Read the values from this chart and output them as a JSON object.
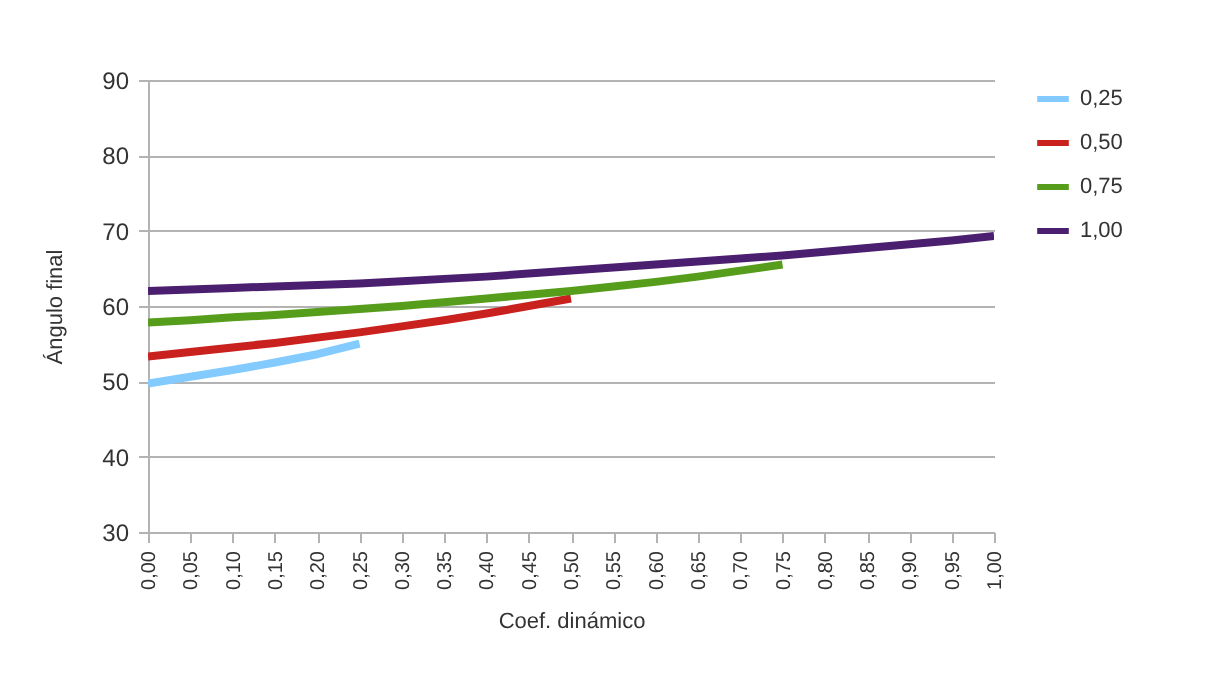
{
  "chart_data": {
    "type": "line",
    "xlabel": "Coef. dinámico",
    "ylabel": "Ángulo final",
    "xlim": [
      0,
      1
    ],
    "xticks": [
      {
        "value": 0,
        "label": "0,00"
      },
      {
        "value": 0.05,
        "label": "0,05"
      },
      {
        "value": 0.1,
        "label": "0,10"
      },
      {
        "value": 0.15,
        "label": "0,15"
      },
      {
        "value": 0.2,
        "label": "0,20"
      },
      {
        "value": 0.25,
        "label": "0,25"
      },
      {
        "value": 0.3,
        "label": "0,30"
      },
      {
        "value": 0.35,
        "label": "0,35"
      },
      {
        "value": 0.4,
        "label": "0,40"
      },
      {
        "value": 0.45,
        "label": "0,45"
      },
      {
        "value": 0.5,
        "label": "0,50"
      },
      {
        "value": 0.55,
        "label": "0,55"
      },
      {
        "value": 0.6,
        "label": "0,60"
      },
      {
        "value": 0.65,
        "label": "0,65"
      },
      {
        "value": 0.7,
        "label": "0,70"
      },
      {
        "value": 0.75,
        "label": "0,75"
      },
      {
        "value": 0.8,
        "label": "0,80"
      },
      {
        "value": 0.85,
        "label": "0,85"
      },
      {
        "value": 0.9,
        "label": "0,90"
      },
      {
        "value": 0.95,
        "label": "0,95"
      },
      {
        "value": 1,
        "label": "1,00"
      }
    ],
    "ylim": [
      30,
      90
    ],
    "yticks": [
      30,
      40,
      50,
      60,
      70,
      80,
      90
    ],
    "grid": "y",
    "legend": "right",
    "marker": "none",
    "line_style": "solid",
    "series": [
      {
        "name": "0,25",
        "color": "#83caff",
        "x": [
          0,
          0.05,
          0.1,
          0.15,
          0.2,
          0.25
        ],
        "values": [
          49.7,
          50.6,
          51.5,
          52.5,
          53.6,
          55.0
        ]
      },
      {
        "name": "0,50",
        "color": "#c9211e",
        "x": [
          0,
          0.05,
          0.1,
          0.15,
          0.2,
          0.25,
          0.3,
          0.35,
          0.4,
          0.45,
          0.5
        ],
        "values": [
          53.3,
          53.9,
          54.5,
          55.1,
          55.8,
          56.5,
          57.3,
          58.1,
          59.0,
          60.0,
          61.0
        ]
      },
      {
        "name": "0,75",
        "color": "#579d1c",
        "x": [
          0,
          0.05,
          0.1,
          0.15,
          0.2,
          0.25,
          0.3,
          0.35,
          0.4,
          0.45,
          0.5,
          0.55,
          0.6,
          0.65,
          0.7,
          0.75
        ],
        "values": [
          57.8,
          58.1,
          58.5,
          58.8,
          59.2,
          59.6,
          60.0,
          60.5,
          61.0,
          61.5,
          62.0,
          62.6,
          63.2,
          63.9,
          64.7,
          65.5
        ]
      },
      {
        "name": "1,00",
        "color": "#4b1f6f",
        "x": [
          0,
          0.05,
          0.1,
          0.15,
          0.2,
          0.25,
          0.3,
          0.35,
          0.4,
          0.45,
          0.5,
          0.55,
          0.6,
          0.65,
          0.7,
          0.75,
          0.8,
          0.85,
          0.9,
          0.95,
          1
        ],
        "values": [
          62.0,
          62.2,
          62.4,
          62.6,
          62.8,
          63.0,
          63.3,
          63.6,
          63.9,
          64.3,
          64.7,
          65.1,
          65.5,
          65.9,
          66.3,
          66.7,
          67.2,
          67.7,
          68.2,
          68.7,
          69.3
        ]
      }
    ]
  }
}
